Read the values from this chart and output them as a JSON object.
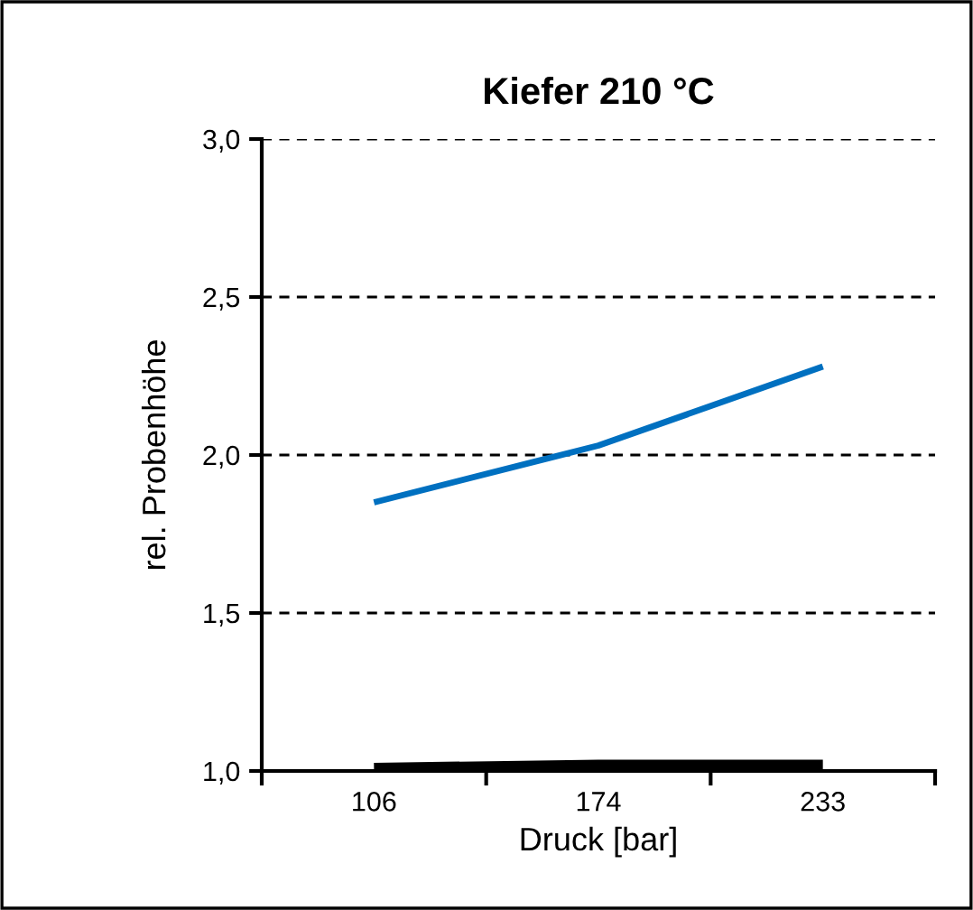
{
  "chart_data": {
    "type": "line",
    "title": "Kiefer 210 °C",
    "xlabel": "Druck [bar]",
    "ylabel": "rel. Probenhöhe",
    "categories": [
      "106",
      "174",
      "233"
    ],
    "series": [
      {
        "color": "#0070c0",
        "values": [
          1.85,
          2.03,
          2.28
        ]
      },
      {
        "color": "#000000",
        "values": [
          1.01,
          1.02,
          1.02
        ]
      }
    ],
    "ylim": [
      1.0,
      3.0
    ],
    "yticks": [
      {
        "value": 1.0,
        "label": "1,0"
      },
      {
        "value": 1.5,
        "label": "1,5"
      },
      {
        "value": 2.0,
        "label": "2,0"
      },
      {
        "value": 2.5,
        "label": "2,5"
      },
      {
        "value": 3.0,
        "label": "3,0"
      }
    ],
    "grid": "y",
    "line_style": "solid",
    "marker": "none"
  }
}
